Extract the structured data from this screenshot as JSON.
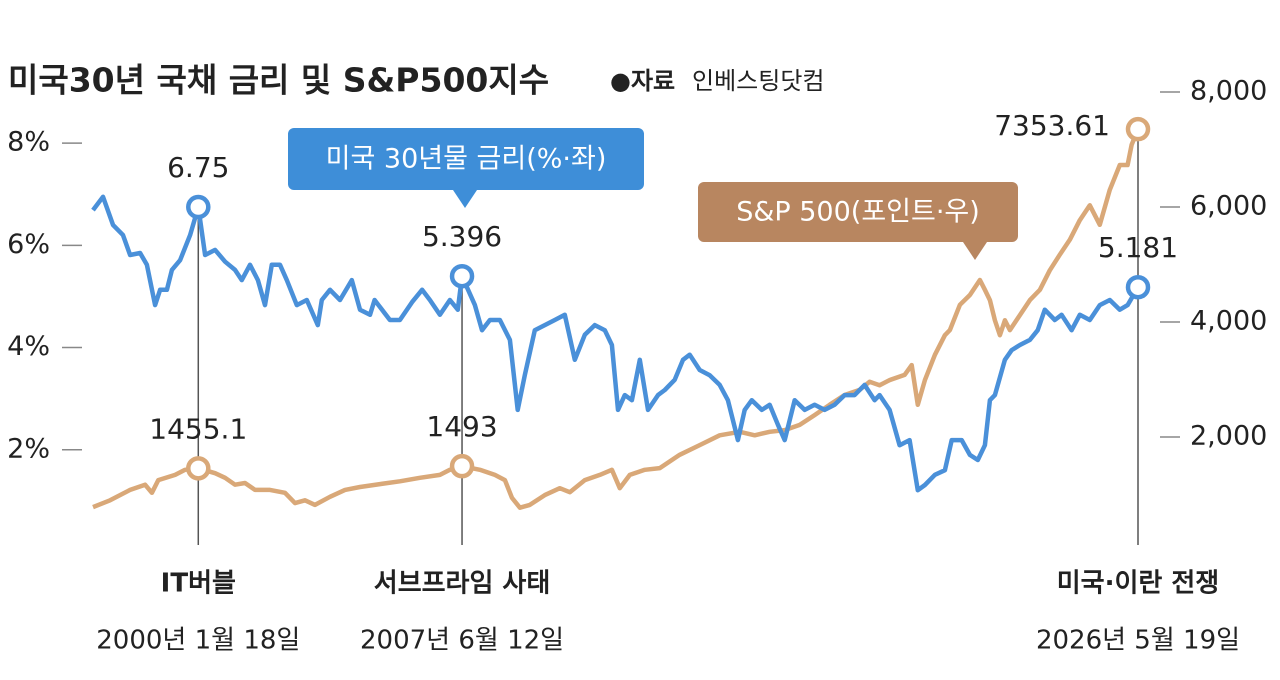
{
  "chart_data": {
    "type": "line",
    "title": "미국30년 국채 금리 및 S&P500지수",
    "source_label": "●자료",
    "source": "인베스팅닷컴",
    "xlim": [
      1997.1,
      2026.38
    ],
    "ylim": [
      0,
      9
    ],
    "yticks": [
      {
        "value": 2,
        "label": "2%"
      },
      {
        "value": 4,
        "label": "4%"
      },
      {
        "value": 6,
        "label": "6%"
      },
      {
        "value": 8,
        "label": "8%"
      }
    ],
    "y2lim": [
      0,
      8000
    ],
    "y2ticks": [
      {
        "value": 2000,
        "label": "2,000"
      },
      {
        "value": 4000,
        "label": "4,000"
      },
      {
        "value": 6000,
        "label": "6,000"
      },
      {
        "value": 8000,
        "label": "8,000"
      }
    ],
    "grid": false,
    "series": [
      {
        "name": "미국 30년물 금리(%·좌)",
        "color": "#4a90d9",
        "label_color": "#3f86cf",
        "box_color": "#3e8ed8",
        "axis": "y",
        "x": [
          1997.1,
          1997.38,
          1997.66,
          1997.94,
          1998.14,
          1998.42,
          1998.61,
          1998.84,
          1998.98,
          1999.17,
          1999.31,
          1999.54,
          1999.82,
          2000.05,
          2000.24,
          2000.52,
          2000.8,
          2001.08,
          2001.27,
          2001.5,
          2001.72,
          2001.92,
          2002.11,
          2002.34,
          2002.53,
          2002.81,
          2003.09,
          2003.4,
          2003.51,
          2003.74,
          2004.02,
          2004.35,
          2004.58,
          2004.86,
          2004.99,
          2005.42,
          2005.7,
          2006.04,
          2006.32,
          2006.54,
          2006.82,
          2007.1,
          2007.32,
          2007.44,
          2007.8,
          2008.0,
          2008.22,
          2008.5,
          2008.78,
          2009.0,
          2009.2,
          2009.48,
          2009.76,
          2010.04,
          2010.32,
          2010.6,
          2010.88,
          2011.16,
          2011.44,
          2011.64,
          2011.81,
          2012.0,
          2012.2,
          2012.42,
          2012.65,
          2012.93,
          2013.12,
          2013.4,
          2013.63,
          2013.82,
          2014.1,
          2014.38,
          2014.66,
          2014.89,
          2015.17,
          2015.36,
          2015.56,
          2015.84,
          2016.06,
          2016.29,
          2016.48,
          2016.76,
          2017.04,
          2017.32,
          2017.6,
          2017.88,
          2018.16,
          2018.44,
          2018.72,
          2019.0,
          2019.14,
          2019.42,
          2019.7,
          2019.98,
          2020.21,
          2020.41,
          2020.69,
          2020.97,
          2021.16,
          2021.44,
          2021.67,
          2021.89,
          2022.09,
          2022.23,
          2022.37,
          2022.65,
          2022.84,
          2023.07,
          2023.35,
          2023.57,
          2023.77,
          2024.05,
          2024.24,
          2024.52,
          2024.75,
          2025.03,
          2025.31,
          2025.59,
          2025.87,
          2026.09,
          2026.38
        ],
        "values": [
          6.69,
          6.95,
          6.4,
          6.2,
          5.81,
          5.85,
          5.62,
          4.83,
          5.13,
          5.13,
          5.52,
          5.71,
          6.2,
          6.75,
          5.81,
          5.91,
          5.68,
          5.52,
          5.32,
          5.62,
          5.32,
          4.83,
          5.62,
          5.62,
          5.32,
          4.83,
          4.93,
          4.44,
          4.93,
          5.13,
          4.93,
          5.32,
          4.74,
          4.64,
          4.93,
          4.54,
          4.54,
          4.89,
          5.13,
          4.93,
          4.64,
          4.93,
          4.74,
          5.396,
          4.83,
          4.34,
          4.54,
          4.54,
          4.15,
          2.78,
          3.46,
          4.34,
          4.44,
          4.54,
          4.64,
          3.76,
          4.25,
          4.44,
          4.34,
          4.05,
          2.78,
          3.07,
          2.97,
          3.76,
          2.78,
          3.07,
          3.17,
          3.37,
          3.76,
          3.86,
          3.56,
          3.46,
          3.27,
          2.97,
          2.19,
          2.78,
          2.97,
          2.78,
          2.88,
          2.49,
          2.19,
          2.97,
          2.78,
          2.88,
          2.78,
          2.88,
          3.07,
          3.07,
          3.27,
          2.97,
          3.07,
          2.78,
          2.09,
          2.19,
          1.21,
          1.31,
          1.51,
          1.6,
          2.19,
          2.19,
          1.9,
          1.8,
          2.09,
          2.97,
          3.07,
          3.76,
          3.95,
          4.05,
          4.15,
          4.34,
          4.74,
          4.54,
          4.64,
          4.34,
          4.64,
          4.54,
          4.83,
          4.93,
          4.74,
          4.83,
          5.181
        ]
      },
      {
        "name": "S&P 500(포인트·우)",
        "color": "#d9a878",
        "label_color": "#b06d44",
        "box_color": "#b88660",
        "axis": "y2",
        "x": [
          1997.1,
          1997.58,
          1998.14,
          1998.56,
          1998.75,
          1998.93,
          1999.4,
          1999.68,
          2000.05,
          2000.52,
          2000.8,
          2001.08,
          2001.36,
          2001.64,
          2002.06,
          2002.48,
          2002.76,
          2003.04,
          2003.32,
          2003.74,
          2004.16,
          2004.58,
          2005.14,
          2005.7,
          2006.26,
          2006.82,
          2007.1,
          2007.44,
          2007.94,
          2008.36,
          2008.64,
          2008.84,
          2009.06,
          2009.34,
          2009.76,
          2010.18,
          2010.46,
          2010.88,
          2011.3,
          2011.64,
          2011.86,
          2012.14,
          2012.56,
          2012.98,
          2013.54,
          2014.1,
          2014.66,
          2015.22,
          2015.64,
          2016.06,
          2016.48,
          2016.9,
          2017.32,
          2017.74,
          2018.16,
          2018.58,
          2018.86,
          2019.14,
          2019.42,
          2019.84,
          2020.04,
          2020.21,
          2020.41,
          2020.69,
          2020.97,
          2021.11,
          2021.39,
          2021.67,
          2021.95,
          2022.09,
          2022.23,
          2022.37,
          2022.51,
          2022.65,
          2022.79,
          2023.07,
          2023.35,
          2023.63,
          2023.91,
          2024.19,
          2024.47,
          2024.75,
          2025.03,
          2025.31,
          2025.59,
          2025.87,
          2026.09,
          2026.2,
          2026.38
        ],
        "values": [
          780,
          900,
          1080,
          1170,
          1030,
          1250,
          1340,
          1430,
          1455.1,
          1370,
          1290,
          1170,
          1200,
          1080,
          1080,
          1030,
          850,
          900,
          820,
          960,
          1080,
          1130,
          1180,
          1230,
          1290,
          1340,
          1430,
          1493,
          1430,
          1340,
          1250,
          940,
          770,
          820,
          990,
          1110,
          1040,
          1250,
          1340,
          1430,
          1110,
          1340,
          1430,
          1460,
          1690,
          1860,
          2030,
          2090,
          2030,
          2090,
          2120,
          2210,
          2380,
          2560,
          2730,
          2820,
          2960,
          2900,
          2990,
          3080,
          3250,
          2560,
          2990,
          3430,
          3770,
          3860,
          4300,
          4470,
          4730,
          4560,
          4380,
          4030,
          3770,
          4030,
          3860,
          4120,
          4380,
          4560,
          4900,
          5170,
          5430,
          5770,
          6030,
          5690,
          6300,
          6730,
          6730,
          7080,
          7353.61
        ]
      }
    ],
    "annotations": [
      {
        "label": "IT버블",
        "date": "2000년 1월 18일",
        "x": 2000.05
      },
      {
        "label": "서브프라임 사태",
        "date": "2007년 6월 12일",
        "x": 2007.44
      },
      {
        "label": "미국·이란 전쟁",
        "date": "2026년 5월 19일",
        "x": 2026.38
      }
    ]
  }
}
